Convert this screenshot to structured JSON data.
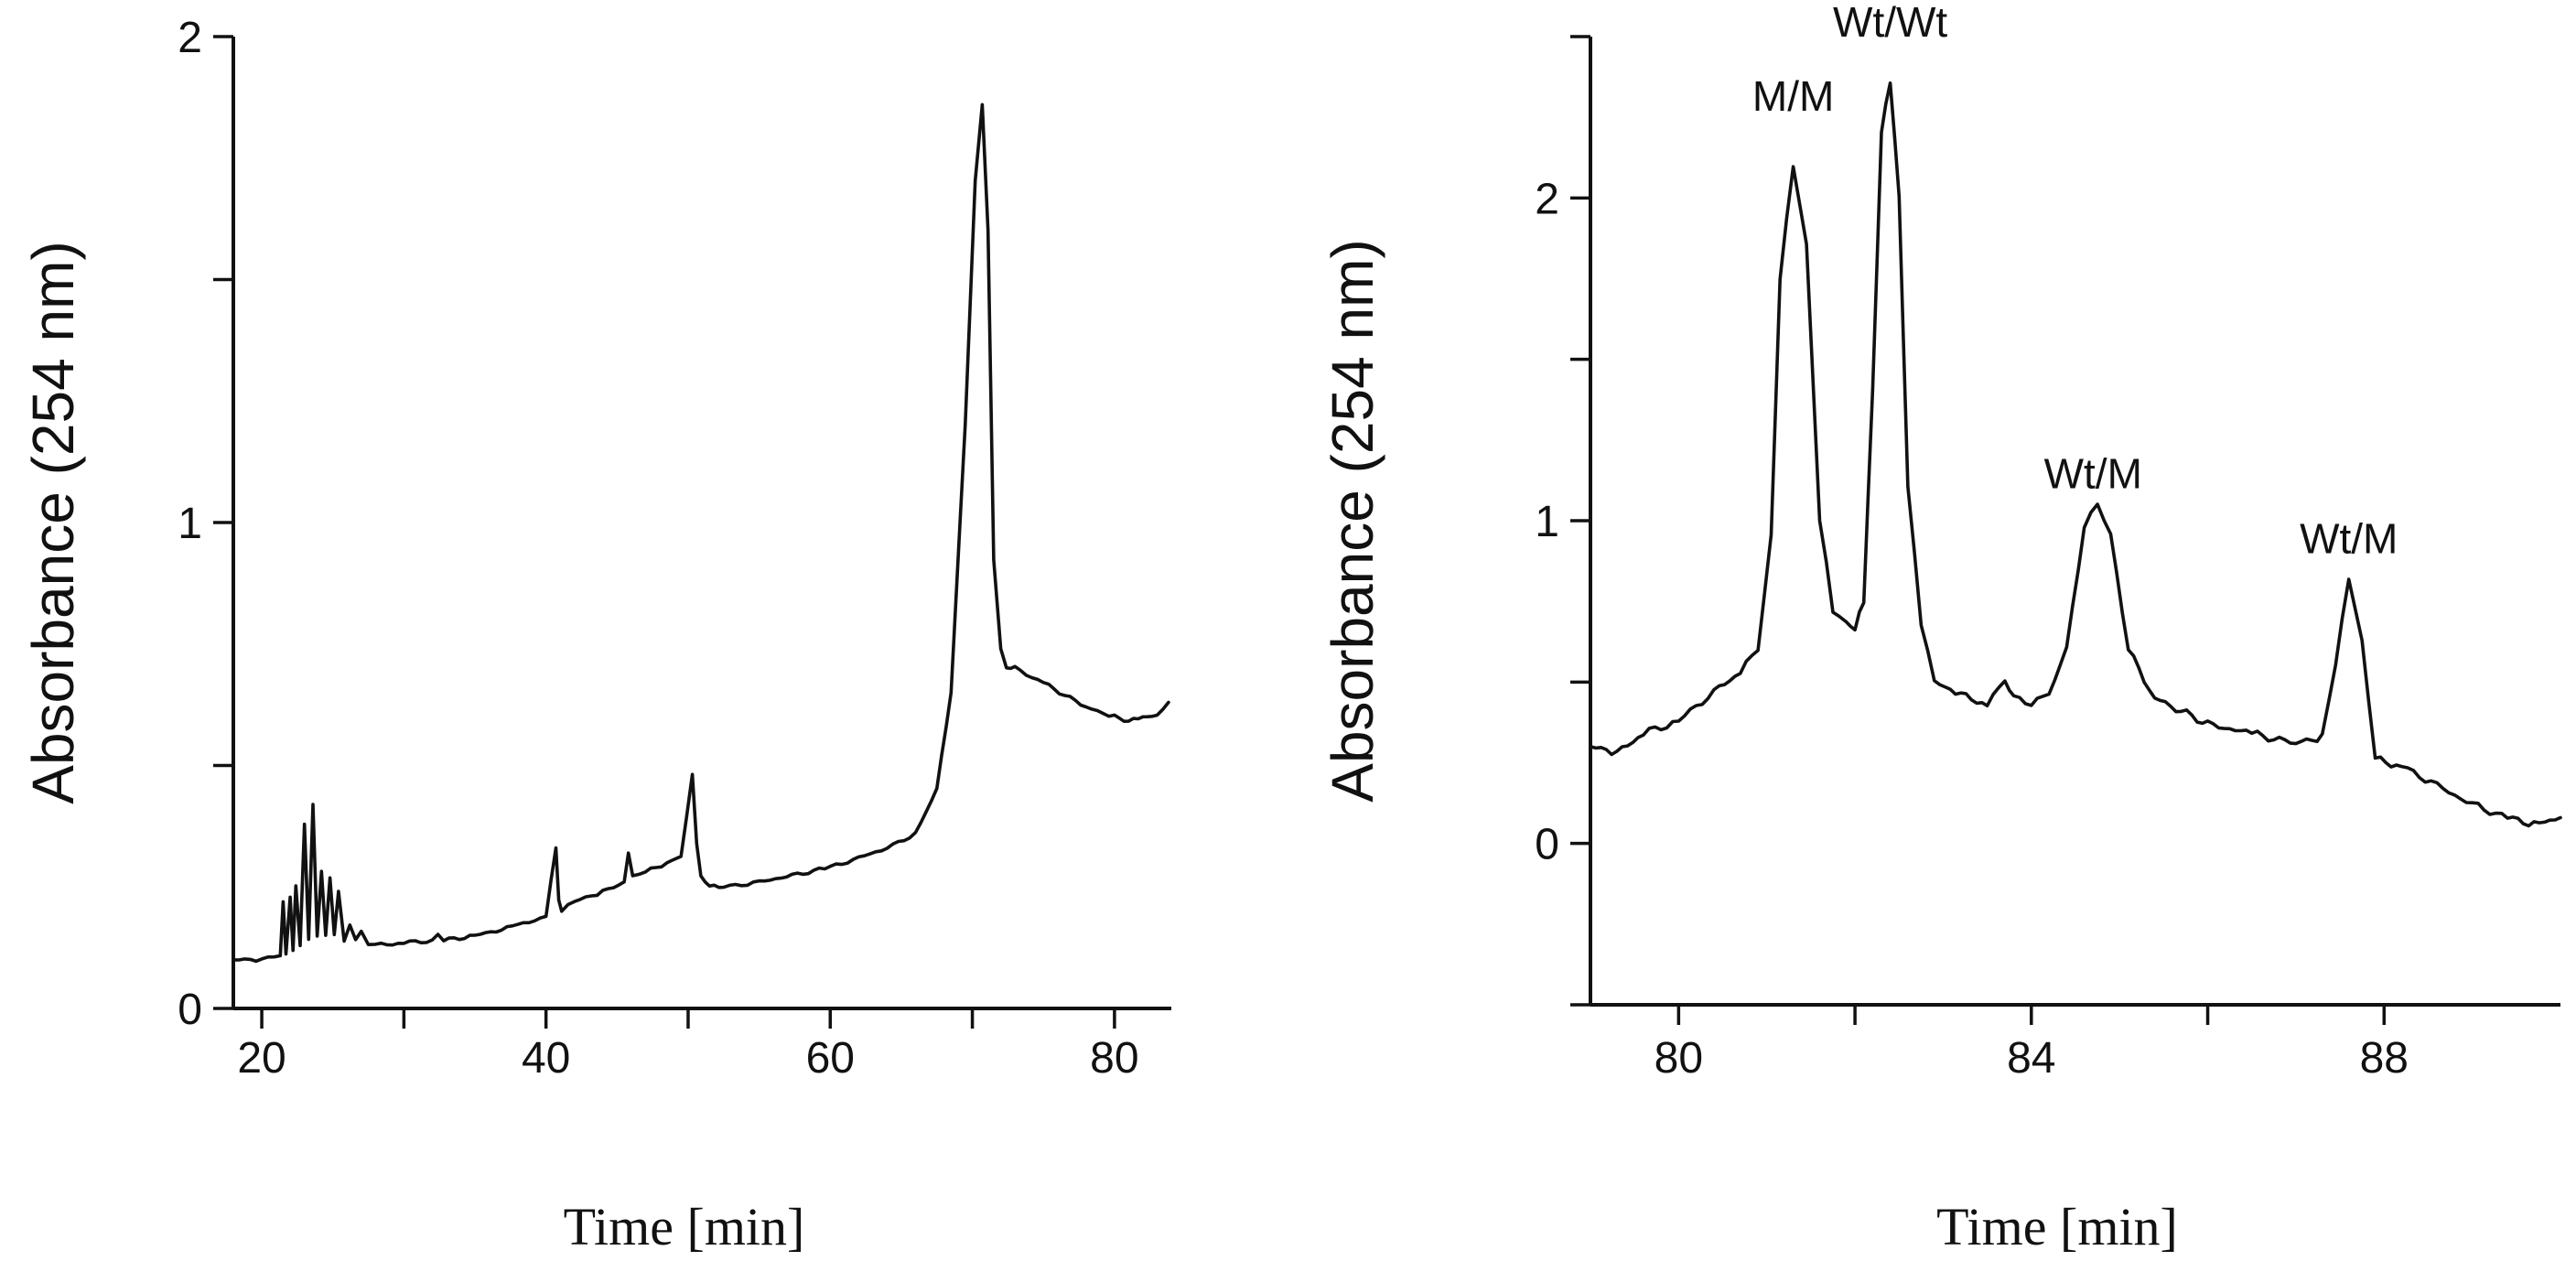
{
  "chart_data": [
    {
      "type": "line",
      "title": "",
      "xlabel": "Time [min]",
      "ylabel": "Absorbance (254 nm)",
      "xlim": [
        18,
        84
      ],
      "ylim": [
        0,
        2
      ],
      "x_ticks": [
        20,
        40,
        60,
        80
      ],
      "x_tick_labels": [
        "20",
        "40",
        "60",
        "80"
      ],
      "x_minor_ticks": [
        30,
        50,
        70
      ],
      "y_ticks": [
        0,
        1,
        2
      ],
      "y_tick_labels": [
        "0",
        "1",
        "2"
      ],
      "y_minor_ticks": [
        0.5,
        1.5
      ],
      "grid": false,
      "series": [
        {
          "x": [
            18,
            20,
            21.3,
            21.5,
            21.7,
            22.0,
            22.2,
            22.4,
            22.7,
            23.0,
            23.3,
            23.6,
            23.9,
            24.2,
            24.5,
            24.8,
            25.1,
            25.4,
            25.8,
            26.2,
            26.6,
            27.0,
            27.5,
            28,
            30,
            32,
            32.4,
            32.8,
            35,
            38,
            40,
            40.7,
            40.9,
            41.1,
            42,
            44,
            45.5,
            45.8,
            46.1,
            47,
            48.5,
            49.5,
            50.3,
            50.6,
            50.9,
            51.5,
            52.5,
            55,
            60,
            64,
            66,
            67.5,
            68.5,
            69.5,
            70.2,
            70.7,
            71.1,
            71.5,
            72.0,
            72.4,
            73,
            75,
            78,
            80,
            81,
            82,
            83,
            83.8
          ],
          "y": [
            0.1,
            0.1,
            0.11,
            0.22,
            0.11,
            0.23,
            0.12,
            0.25,
            0.13,
            0.38,
            0.14,
            0.42,
            0.15,
            0.28,
            0.15,
            0.27,
            0.15,
            0.24,
            0.14,
            0.17,
            0.14,
            0.16,
            0.13,
            0.13,
            0.135,
            0.14,
            0.15,
            0.14,
            0.15,
            0.17,
            0.19,
            0.33,
            0.22,
            0.2,
            0.22,
            0.24,
            0.26,
            0.32,
            0.27,
            0.28,
            0.3,
            0.31,
            0.48,
            0.34,
            0.27,
            0.25,
            0.25,
            0.26,
            0.29,
            0.33,
            0.36,
            0.45,
            0.65,
            1.2,
            1.7,
            1.86,
            1.6,
            0.92,
            0.74,
            0.7,
            0.7,
            0.67,
            0.62,
            0.6,
            0.59,
            0.6,
            0.6,
            0.63
          ]
        }
      ]
    },
    {
      "type": "line",
      "title": "",
      "xlabel": "Time [min]",
      "ylabel": "Absorbance (254 nm)",
      "xlim": [
        79,
        90
      ],
      "ylim": [
        -0.5,
        2.5
      ],
      "x_ticks": [
        80,
        84,
        88
      ],
      "x_tick_labels": [
        "80",
        "84",
        "88"
      ],
      "x_minor_ticks": [
        82,
        86
      ],
      "y_ticks": [
        0,
        1,
        2
      ],
      "y_tick_labels": [
        "0",
        "1",
        "2"
      ],
      "y_minor_ticks": [
        -0.5,
        0.5,
        1.5,
        2.5
      ],
      "grid": false,
      "annotations": [
        {
          "text": "M/M",
          "x": 81.3,
          "y": 2.27
        },
        {
          "text": "Wt/Wt",
          "x": 82.4,
          "y": 2.5
        },
        {
          "text": "Wt/M",
          "x": 84.7,
          "y": 1.1
        },
        {
          "text": "Wt/M",
          "x": 87.6,
          "y": 0.9
        }
      ],
      "series": [
        {
          "x": [
            79,
            79.3,
            79.6,
            80,
            80.4,
            80.7,
            80.9,
            81.05,
            81.15,
            81.3,
            81.45,
            81.6,
            81.75,
            81.9,
            82.0,
            82.1,
            82.2,
            82.3,
            82.4,
            82.5,
            82.6,
            82.75,
            82.9,
            83.2,
            83.5,
            83.7,
            83.8,
            84.0,
            84.2,
            84.4,
            84.6,
            84.75,
            84.9,
            85.1,
            85.4,
            86,
            86.5,
            87,
            87.3,
            87.45,
            87.6,
            87.75,
            87.9,
            88.2,
            88.6,
            89,
            89.4,
            89.7,
            90
          ],
          "y": [
            0.3,
            0.28,
            0.34,
            0.38,
            0.47,
            0.53,
            0.6,
            0.95,
            1.75,
            2.1,
            1.85,
            1.0,
            0.72,
            0.68,
            0.66,
            0.75,
            1.4,
            2.2,
            2.36,
            2.0,
            1.1,
            0.68,
            0.5,
            0.46,
            0.43,
            0.5,
            0.45,
            0.43,
            0.46,
            0.6,
            0.98,
            1.05,
            0.95,
            0.6,
            0.45,
            0.37,
            0.34,
            0.31,
            0.33,
            0.55,
            0.82,
            0.62,
            0.26,
            0.24,
            0.18,
            0.12,
            0.08,
            0.06,
            0.08
          ]
        }
      ]
    }
  ]
}
